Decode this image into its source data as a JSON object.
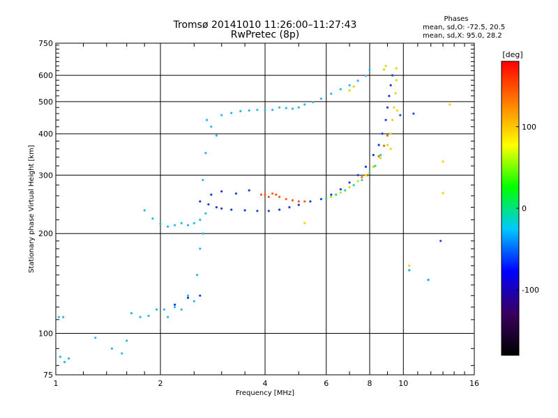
{
  "chart_data": {
    "type": "scatter",
    "title": "Tromsø 20141010 11:26:00–11:27:43",
    "subtitle": "RwPretec (8p)",
    "xlabel": "Frequency [MHz]",
    "ylabel": "Stationary phase Virtual Height [km]",
    "xscale": "log",
    "yscale": "log",
    "xlim": [
      1,
      16
    ],
    "ylim": [
      75,
      750
    ],
    "xticks": [
      1,
      2,
      4,
      6,
      8,
      10,
      16
    ],
    "yticks": [
      75,
      100,
      200,
      300,
      400,
      500,
      600,
      750
    ],
    "grid": true,
    "phases": {
      "heading": "Phases",
      "line_o": "mean, sd,O: -72.5, 20.5",
      "line_x": "mean, sd,X:  95.0, 28.2"
    },
    "colorbar": {
      "label": "[deg]",
      "ticks": [
        100,
        0,
        -100
      ],
      "range": [
        -180,
        180
      ],
      "colors": [
        "#000000",
        "#3a0060",
        "#0000ff",
        "#00c8ff",
        "#00ff00",
        "#ffff00",
        "#ff8000",
        "#ff0000"
      ]
    },
    "series": [
      {
        "color": "#29b6e8",
        "points": [
          [
            1.02,
            112
          ],
          [
            1.05,
            112
          ],
          [
            1.03,
            85
          ],
          [
            1.06,
            82
          ],
          [
            1.09,
            84
          ],
          [
            1.3,
            97
          ],
          [
            1.45,
            90
          ],
          [
            1.55,
            87
          ],
          [
            1.6,
            95
          ],
          [
            1.65,
            115
          ],
          [
            1.75,
            112
          ],
          [
            1.85,
            113
          ],
          [
            1.95,
            118
          ],
          [
            2.05,
            118
          ],
          [
            2.1,
            112
          ],
          [
            2.2,
            120
          ],
          [
            2.3,
            118
          ],
          [
            2.4,
            130
          ],
          [
            2.5,
            125
          ],
          [
            2.55,
            150
          ],
          [
            2.6,
            180
          ],
          [
            2.65,
            200
          ],
          [
            2.7,
            230
          ],
          [
            1.8,
            235
          ],
          [
            1.9,
            222
          ],
          [
            2.0,
            214
          ],
          [
            2.1,
            210
          ],
          [
            2.2,
            212
          ],
          [
            2.3,
            215
          ],
          [
            2.4,
            212
          ],
          [
            2.5,
            215
          ],
          [
            2.6,
            220
          ],
          [
            2.65,
            290
          ],
          [
            2.7,
            350
          ],
          [
            2.72,
            440
          ],
          [
            2.8,
            420
          ],
          [
            2.9,
            395
          ],
          [
            3.0,
            455
          ],
          [
            3.2,
            462
          ],
          [
            3.4,
            468
          ],
          [
            3.6,
            470
          ],
          [
            3.8,
            472
          ],
          [
            4.0,
            470
          ],
          [
            4.2,
            472
          ],
          [
            4.4,
            480
          ],
          [
            4.6,
            478
          ],
          [
            4.8,
            476
          ],
          [
            5.0,
            480
          ],
          [
            5.2,
            490
          ],
          [
            5.5,
            498
          ],
          [
            5.8,
            510
          ],
          [
            6.2,
            528
          ],
          [
            6.6,
            545
          ],
          [
            7.0,
            560
          ],
          [
            7.4,
            578
          ],
          [
            7.8,
            598
          ],
          [
            8.0,
            625
          ]
        ]
      },
      {
        "color": "#1a3cd6",
        "points": [
          [
            2.6,
            250
          ],
          [
            2.75,
            245
          ],
          [
            2.9,
            240
          ],
          [
            3.0,
            238
          ],
          [
            3.2,
            236
          ],
          [
            3.5,
            235
          ],
          [
            3.8,
            234
          ],
          [
            4.1,
            234
          ],
          [
            4.4,
            236
          ],
          [
            4.7,
            240
          ],
          [
            5.0,
            244
          ],
          [
            5.4,
            250
          ],
          [
            5.8,
            254
          ],
          [
            6.2,
            262
          ],
          [
            6.6,
            272
          ],
          [
            7.0,
            285
          ],
          [
            7.4,
            300
          ],
          [
            7.8,
            318
          ],
          [
            8.2,
            345
          ],
          [
            8.5,
            370
          ],
          [
            8.7,
            400
          ],
          [
            8.9,
            440
          ],
          [
            9.0,
            480
          ],
          [
            9.1,
            520
          ],
          [
            9.2,
            560
          ],
          [
            9.3,
            600
          ],
          [
            2.8,
            262
          ],
          [
            3.0,
            268
          ],
          [
            3.3,
            264
          ],
          [
            3.6,
            270
          ],
          [
            2.6,
            130
          ],
          [
            2.4,
            128
          ],
          [
            2.2,
            122
          ]
        ]
      },
      {
        "color": "#ff5a1a",
        "points": [
          [
            3.9,
            262
          ],
          [
            4.0,
            262
          ],
          [
            4.1,
            258
          ],
          [
            4.2,
            264
          ],
          [
            4.3,
            262
          ],
          [
            4.4,
            258
          ],
          [
            4.6,
            254
          ],
          [
            4.8,
            252
          ],
          [
            5.0,
            250
          ],
          [
            5.2,
            250
          ],
          [
            7.6,
            296
          ],
          [
            7.9,
            300
          ],
          [
            8.2,
            318
          ],
          [
            8.5,
            342
          ],
          [
            8.8,
            368
          ],
          [
            9.0,
            395
          ]
        ]
      },
      {
        "color": "#c8e000",
        "points": [
          [
            6.2,
            258
          ],
          [
            6.6,
            266
          ],
          [
            7.0,
            276
          ],
          [
            7.4,
            288
          ],
          [
            7.8,
            300
          ],
          [
            8.2,
            318
          ],
          [
            8.6,
            338
          ],
          [
            9.0,
            370
          ],
          [
            9.2,
            400
          ],
          [
            9.3,
            440
          ],
          [
            9.4,
            480
          ],
          [
            9.5,
            530
          ],
          [
            9.55,
            580
          ],
          [
            9.55,
            630
          ],
          [
            8.8,
            625
          ],
          [
            8.9,
            640
          ],
          [
            7.0,
            540
          ],
          [
            7.2,
            555
          ]
        ]
      },
      {
        "color": "#2cd48c",
        "points": [
          [
            6.0,
            255
          ],
          [
            6.4,
            262
          ],
          [
            6.8,
            270
          ],
          [
            7.2,
            280
          ],
          [
            7.6,
            290
          ],
          [
            8.0,
            305
          ],
          [
            8.3,
            320
          ],
          [
            8.6,
            345
          ]
        ]
      },
      {
        "color": "#ffd000",
        "points": [
          [
            9.2,
            360
          ],
          [
            9.6,
            470
          ],
          [
            13.6,
            490
          ],
          [
            13.0,
            330
          ],
          [
            13.0,
            265
          ],
          [
            5.2,
            215
          ],
          [
            10.4,
            160
          ]
        ]
      },
      {
        "color": "#2a46e0",
        "points": [
          [
            12.8,
            190
          ],
          [
            10.7,
            460
          ],
          [
            9.8,
            455
          ]
        ]
      },
      {
        "color": "#00b0e0",
        "points": [
          [
            11.8,
            145
          ],
          [
            10.4,
            155
          ]
        ]
      }
    ]
  }
}
